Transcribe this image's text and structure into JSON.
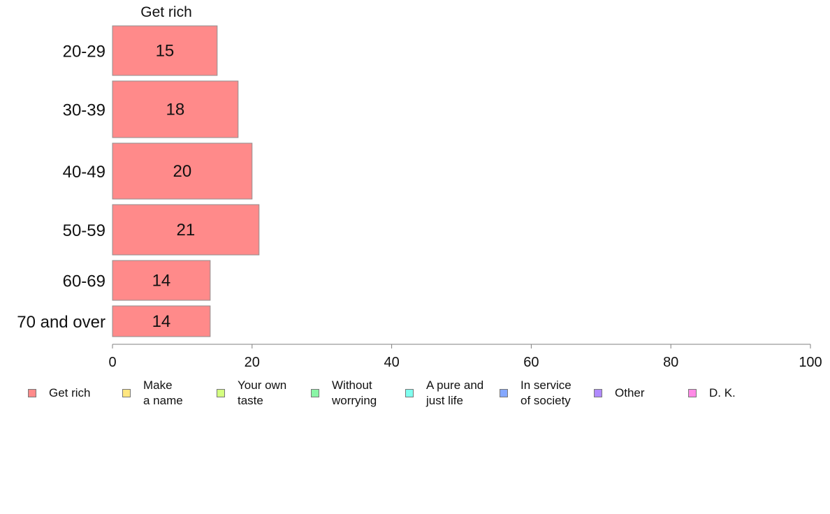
{
  "chart_data": {
    "type": "bar",
    "orientation": "horizontal",
    "stacked": true,
    "panel_title": "Get rich",
    "categories": [
      "20-29",
      "30-39",
      "40-49",
      "50-59",
      "60-69",
      "70 and over"
    ],
    "series": [
      {
        "name": "Get rich",
        "color": "#ff8a8a",
        "values": [
          15,
          18,
          20,
          21,
          14,
          14
        ],
        "labels": [
          "15",
          "18",
          "20",
          "21",
          "14",
          "14"
        ]
      }
    ],
    "xlim": [
      0,
      100
    ],
    "xticks": [
      "0",
      "20",
      "40",
      "60",
      "80",
      "100"
    ],
    "legend_position": "bottom",
    "legend": [
      {
        "label": "Get rich",
        "color": "#ff8a8a"
      },
      {
        "label": "Make\na name",
        "color": "#ffe680"
      },
      {
        "label": "Your own\ntaste",
        "color": "#d4ff80"
      },
      {
        "label": "Without\nworrying",
        "color": "#8af5a6"
      },
      {
        "label": "A pure and\njust life",
        "color": "#80ffef"
      },
      {
        "label": "In service\nof society",
        "color": "#85a8ff"
      },
      {
        "label": "Other",
        "color": "#b08aff"
      },
      {
        "label": "D. K.",
        "color": "#ff8ae6"
      }
    ]
  }
}
